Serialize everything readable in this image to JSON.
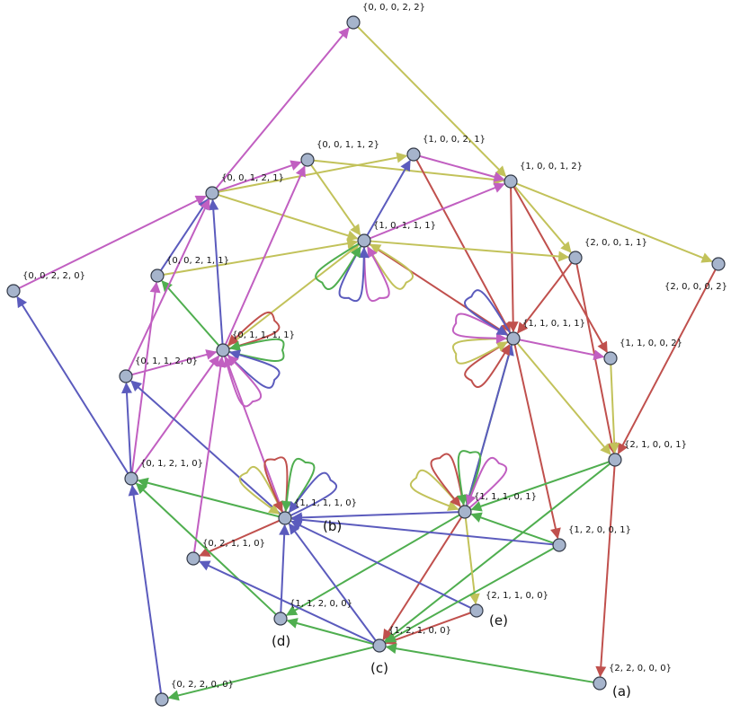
{
  "colors": {
    "red": "#c0504d",
    "blue": "#5b5bbd",
    "green": "#4fae4f",
    "yellow": "#c2c25a",
    "magenta": "#c15fc1"
  },
  "nodes": [
    {
      "id": "n00022",
      "label": "{0, 0, 0, 2, 2}"
    },
    {
      "id": "n00112",
      "label": "{0, 0, 1, 1, 2}"
    },
    {
      "id": "n10021",
      "label": "{1, 0, 0, 2, 1}"
    },
    {
      "id": "n10012",
      "label": "{1, 0, 0, 1, 2}"
    },
    {
      "id": "n00121",
      "label": "{0, 0, 1, 2, 1}"
    },
    {
      "id": "n10111",
      "label": "{1, 0, 1, 1, 1}"
    },
    {
      "id": "n20011",
      "label": "{2, 0, 0, 1, 1}"
    },
    {
      "id": "n20002",
      "label": "{2, 0, 0, 0, 2}"
    },
    {
      "id": "n00220",
      "label": "{0, 0, 2, 2, 0}"
    },
    {
      "id": "n00211",
      "label": "{0, 0, 2, 1, 1}"
    },
    {
      "id": "n01111",
      "label": "{0, 1, 1, 1, 1}"
    },
    {
      "id": "n11011",
      "label": "{1, 1, 0, 1, 1}"
    },
    {
      "id": "n11002",
      "label": "{1, 1, 0, 0, 2}"
    },
    {
      "id": "n01120",
      "label": "{0, 1, 1, 2, 0}"
    },
    {
      "id": "n21001",
      "label": "{2, 1, 0, 0, 1}"
    },
    {
      "id": "n01210",
      "label": "{0, 1, 2, 1, 0}"
    },
    {
      "id": "n11110",
      "label": "{1, 1, 1, 1, 0}"
    },
    {
      "id": "n11101",
      "label": "{1, 1, 1, 0, 1}"
    },
    {
      "id": "n12001",
      "label": "{1, 2, 0, 0, 1}"
    },
    {
      "id": "n02110",
      "label": "{0, 2, 1, 1, 0}"
    },
    {
      "id": "n21100",
      "label": "{2, 1, 1, 0, 0}"
    },
    {
      "id": "n11200",
      "label": "{1, 1, 2, 0, 0}"
    },
    {
      "id": "n12100",
      "label": "{1, 2, 1, 0, 0}"
    },
    {
      "id": "n22000",
      "label": "{2, 2, 0, 0, 0}"
    },
    {
      "id": "n02200",
      "label": "{0, 2, 2, 0, 0}"
    }
  ],
  "panel_labels": [
    {
      "node": "n22000",
      "text": "(a)"
    },
    {
      "node": "n11110",
      "text": "(b)"
    },
    {
      "node": "n12100",
      "text": "(c)"
    },
    {
      "node": "n11200",
      "text": "(d)"
    },
    {
      "node": "n21100",
      "text": "(e)"
    }
  ],
  "edges": [
    [
      "n00022",
      "n10012",
      "yellow"
    ],
    [
      "n00121",
      "n00022",
      "magenta"
    ],
    [
      "n00121",
      "n00112",
      "magenta"
    ],
    [
      "n00121",
      "n10021",
      "yellow"
    ],
    [
      "n00121",
      "n10111",
      "yellow"
    ],
    [
      "n00112",
      "n10012",
      "yellow"
    ],
    [
      "n00112",
      "n10111",
      "yellow"
    ],
    [
      "n10021",
      "n10012",
      "magenta"
    ],
    [
      "n10021",
      "n11011",
      "red"
    ],
    [
      "n10012",
      "n20011",
      "yellow"
    ],
    [
      "n10012",
      "n20002",
      "yellow"
    ],
    [
      "n10012",
      "n11011",
      "red"
    ],
    [
      "n10012",
      "n11002",
      "red"
    ],
    [
      "n10111",
      "n10021",
      "blue"
    ],
    [
      "n10111",
      "n10012",
      "magenta"
    ],
    [
      "n10111",
      "n20011",
      "yellow"
    ],
    [
      "n10111",
      "n11011",
      "red"
    ],
    [
      "n20011",
      "n11011",
      "red"
    ],
    [
      "n20011",
      "n21001",
      "red"
    ],
    [
      "n20002",
      "n21001",
      "red"
    ],
    [
      "n00220",
      "n00121",
      "magenta"
    ],
    [
      "n00211",
      "n00121",
      "blue"
    ],
    [
      "n00211",
      "n10111",
      "yellow"
    ],
    [
      "n01111",
      "n00121",
      "blue"
    ],
    [
      "n01111",
      "n00211",
      "green"
    ],
    [
      "n01111",
      "n00112",
      "magenta"
    ],
    [
      "n01111",
      "n10111",
      "yellow"
    ],
    [
      "n01120",
      "n00121",
      "magenta"
    ],
    [
      "n01120",
      "n01111",
      "magenta"
    ],
    [
      "n01210",
      "n00211",
      "magenta"
    ],
    [
      "n01210",
      "n01120",
      "blue"
    ],
    [
      "n01210",
      "n00220",
      "blue"
    ],
    [
      "n01210",
      "n01111",
      "magenta"
    ],
    [
      "n11011",
      "n11002",
      "magenta"
    ],
    [
      "n11011",
      "n21001",
      "yellow"
    ],
    [
      "n11011",
      "n11101",
      "green"
    ],
    [
      "n11011",
      "n12001",
      "red"
    ],
    [
      "n11002",
      "n21001",
      "yellow"
    ],
    [
      "n21001",
      "n11101",
      "green"
    ],
    [
      "n21001",
      "n12100",
      "green"
    ],
    [
      "n21001",
      "n22000",
      "red"
    ],
    [
      "n11110",
      "n01111",
      "magenta"
    ],
    [
      "n11110",
      "n01120",
      "blue"
    ],
    [
      "n11110",
      "n01210",
      "green"
    ],
    [
      "n11110",
      "n02110",
      "red"
    ],
    [
      "n11101",
      "n11110",
      "blue"
    ],
    [
      "n11101",
      "n21100",
      "yellow"
    ],
    [
      "n11101",
      "n11200",
      "green"
    ],
    [
      "n11101",
      "n12100",
      "red"
    ],
    [
      "n11101",
      "n11011",
      "blue"
    ],
    [
      "n12001",
      "n11101",
      "green"
    ],
    [
      "n12001",
      "n11110",
      "blue"
    ],
    [
      "n02110",
      "n01111",
      "magenta"
    ],
    [
      "n21100",
      "n11110",
      "blue"
    ],
    [
      "n21100",
      "n12100",
      "red"
    ],
    [
      "n11200",
      "n11110",
      "blue"
    ],
    [
      "n11200",
      "n01210",
      "green"
    ],
    [
      "n12100",
      "n11200",
      "green"
    ],
    [
      "n12100",
      "n02110",
      "blue"
    ],
    [
      "n12100",
      "n11110",
      "blue"
    ],
    [
      "n12100",
      "n02200",
      "green"
    ],
    [
      "n22000",
      "n12100",
      "green"
    ],
    [
      "n02200",
      "n01210",
      "blue"
    ],
    [
      "n12001",
      "n12100",
      "green"
    ]
  ],
  "loops": [
    {
      "node": "n10111",
      "colors": [
        "yellow",
        "magenta",
        "blue",
        "green"
      ]
    },
    {
      "node": "n01111",
      "colors": [
        "red",
        "green",
        "blue",
        "magenta"
      ]
    },
    {
      "node": "n11011",
      "colors": [
        "red",
        "yellow",
        "magenta",
        "blue"
      ]
    },
    {
      "node": "n11110",
      "colors": [
        "yellow",
        "red",
        "green",
        "blue"
      ]
    },
    {
      "node": "n11101",
      "colors": [
        "yellow",
        "red",
        "green",
        "magenta"
      ]
    }
  ]
}
